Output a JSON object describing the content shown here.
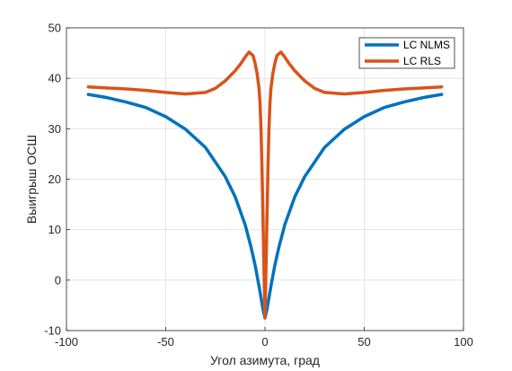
{
  "chart_data": {
    "type": "line",
    "title": "",
    "xlabel": "Угол азимута, град",
    "ylabel": "Выигрыш ОСШ",
    "xlim": [
      -100,
      100
    ],
    "ylim": [
      -10,
      50
    ],
    "xticks": [
      -100,
      -50,
      0,
      50,
      100
    ],
    "yticks": [
      -10,
      0,
      10,
      20,
      30,
      40,
      50
    ],
    "xtick_labels": [
      "-100",
      "-50",
      "0",
      "50",
      "100"
    ],
    "ytick_labels": [
      "-10",
      "0",
      "10",
      "20",
      "30",
      "40",
      "50"
    ],
    "grid": true,
    "legend_position": "top-right",
    "series": [
      {
        "name": "LC NLMS",
        "color": "#0072BD",
        "x": [
          -89,
          -80,
          -70,
          -60,
          -50,
          -40,
          -30,
          -20,
          -15,
          -10,
          -7,
          -5,
          -3,
          -2,
          -1,
          0,
          1,
          2,
          3,
          5,
          7,
          10,
          15,
          20,
          30,
          40,
          50,
          60,
          70,
          80,
          89
        ],
        "y": [
          36.8,
          36.2,
          35.3,
          34.2,
          32.4,
          29.9,
          26.3,
          20.5,
          16.5,
          11.0,
          6.5,
          3.0,
          -1.2,
          -3.5,
          -5.8,
          -7.5,
          -5.8,
          -3.5,
          -1.2,
          3.0,
          6.5,
          11.0,
          16.5,
          20.5,
          26.3,
          29.9,
          32.4,
          34.2,
          35.3,
          36.2,
          36.8
        ]
      },
      {
        "name": "LC RLS",
        "color": "#D95319",
        "x": [
          -89,
          -80,
          -70,
          -60,
          -50,
          -40,
          -30,
          -25,
          -20,
          -15,
          -12,
          -10,
          -8,
          -6,
          -5,
          -4,
          -3,
          -2.5,
          -2,
          -1.5,
          -1,
          -0.5,
          0,
          0.5,
          1,
          1.5,
          2,
          2.5,
          3,
          4,
          5,
          6,
          8,
          10,
          12,
          15,
          20,
          25,
          30,
          40,
          50,
          60,
          70,
          80,
          89
        ],
        "y": [
          38.3,
          38.1,
          37.9,
          37.6,
          37.2,
          36.9,
          37.2,
          38.0,
          39.5,
          41.5,
          43.0,
          44.2,
          45.2,
          44.5,
          43.0,
          41.0,
          38.0,
          35.0,
          30.0,
          22.0,
          12.0,
          2.0,
          -7.5,
          2.0,
          12.0,
          22.0,
          30.0,
          35.0,
          38.0,
          41.0,
          43.0,
          44.5,
          45.2,
          44.2,
          43.0,
          41.5,
          39.5,
          38.0,
          37.2,
          36.9,
          37.2,
          37.6,
          37.9,
          38.1,
          38.3
        ]
      }
    ]
  }
}
